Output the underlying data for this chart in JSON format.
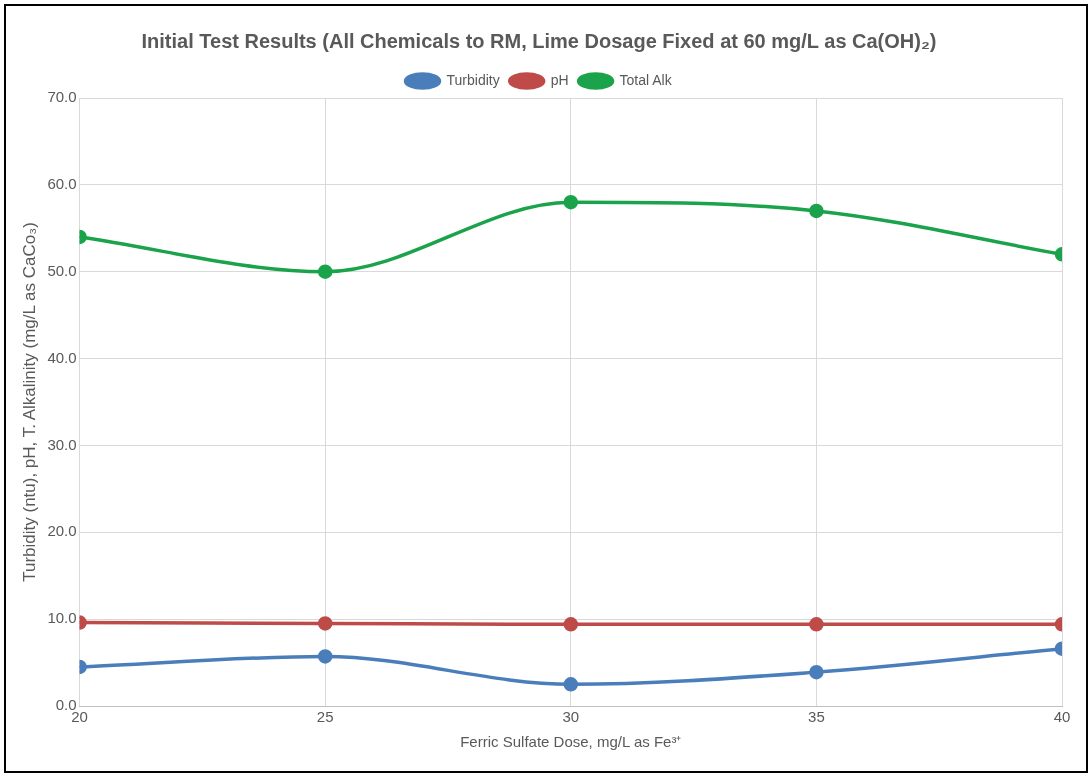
{
  "chart_data": {
    "type": "line",
    "title": "Initial Test Results (All Chemicals to RM, Lime Dosage Fixed at 60 mg/L as Ca(OH)₂)",
    "xlabel": "Ferric Sulfate Dose, mg/L as Fe³⁺",
    "ylabel": "Turbidity (ntu), pH, T. Alkalinity (mg/L as CaCo₃)",
    "x": [
      20,
      25,
      30,
      35,
      40
    ],
    "series": [
      {
        "name": "Turbidity",
        "color": "#4a7ebb",
        "values": [
          4.5,
          5.7,
          2.5,
          3.9,
          6.6
        ]
      },
      {
        "name": "pH",
        "color": "#be4b48",
        "values": [
          9.6,
          9.5,
          9.4,
          9.4,
          9.4
        ]
      },
      {
        "name": "Total Alk",
        "color": "#1aa34a",
        "values": [
          54.0,
          50.0,
          58.0,
          57.0,
          52.0
        ]
      }
    ],
    "xlim": [
      20,
      40
    ],
    "xticks": [
      20,
      25,
      30,
      35,
      40
    ],
    "ylim": [
      0,
      70
    ],
    "yticks": [
      {
        "value": 0,
        "label": "0.0"
      },
      {
        "value": 10,
        "label": "10.0"
      },
      {
        "value": 20,
        "label": "20.0"
      },
      {
        "value": 30,
        "label": "30.0"
      },
      {
        "value": 40,
        "label": "40.0"
      },
      {
        "value": 50,
        "label": "50.0"
      },
      {
        "value": 60,
        "label": "60.0"
      },
      {
        "value": 70,
        "label": "70.0"
      }
    ],
    "grid": true,
    "legend": "top",
    "marker": "circle",
    "line_style": "solid"
  }
}
